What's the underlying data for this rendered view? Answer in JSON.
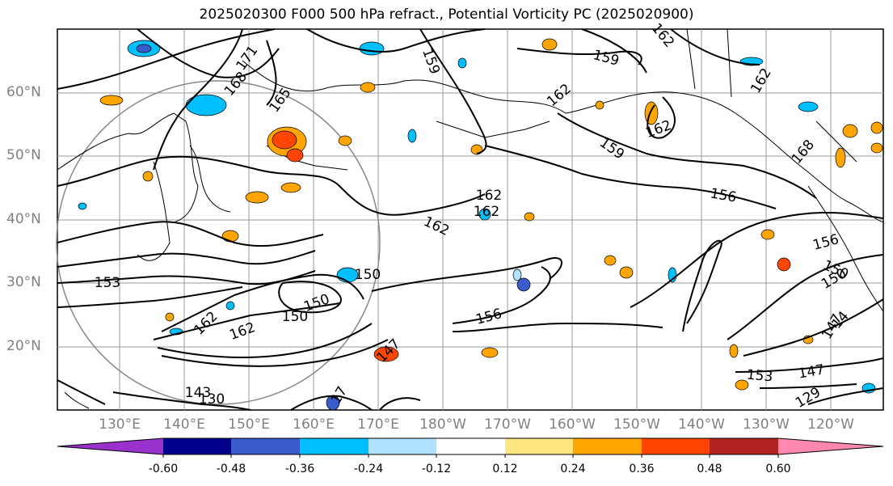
{
  "title": "2025020300 F000 500 hPa refract., Potential Vorticity PC (2025020900)",
  "lat_labels": [
    "60°N",
    "50°N",
    "40°N",
    "30°N",
    "20°N"
  ],
  "lon_labels": [
    "130°E",
    "140°E",
    "150°E",
    "160°E",
    "170°E",
    "180°W",
    "170°W",
    "160°W",
    "150°W",
    "140°W",
    "130°W",
    "120°W"
  ],
  "contour_labels": [
    "171",
    "168",
    "165",
    "162",
    "159",
    "159",
    "162",
    "162",
    "162",
    "159",
    "156",
    "162",
    "162",
    "153",
    "150",
    "156",
    "150",
    "147",
    "147",
    "150",
    "143",
    "130",
    "147",
    "153",
    "156",
    "150",
    "14",
    "129",
    "168",
    "162",
    "162",
    "162",
    "150",
    "17"
  ],
  "colorbar": {
    "ticks": [
      "-0.60",
      "-0.48",
      "-0.36",
      "-0.24",
      "-0.12",
      "0.12",
      "0.24",
      "0.36",
      "0.48",
      "0.60"
    ],
    "colors": [
      "#9932cc",
      "#00008b",
      "#3a5bcc",
      "#00bfff",
      "#b0e2ff",
      "#ffffff",
      "#ffe57f",
      "#ffa500",
      "#ff4500",
      "#b22222",
      "#ff88b0"
    ]
  }
}
